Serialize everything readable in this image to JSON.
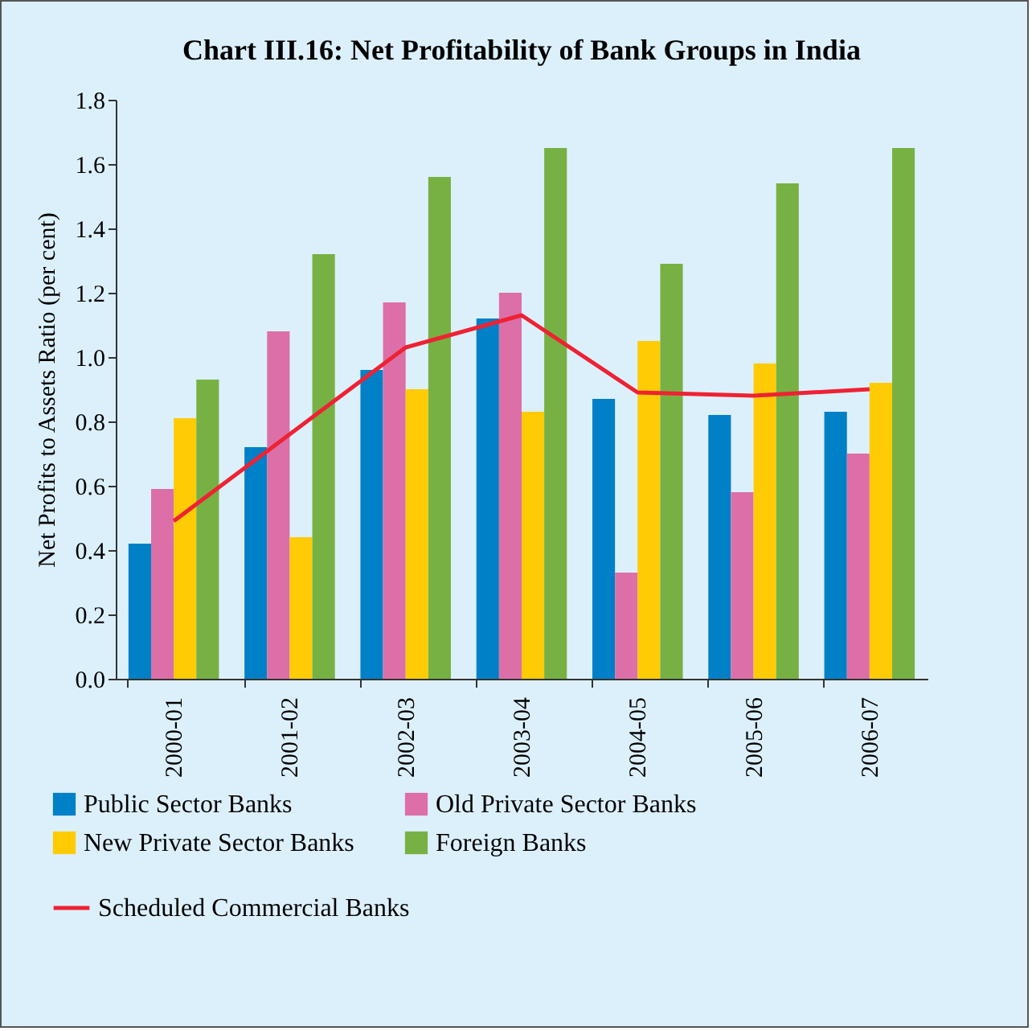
{
  "chart_data": {
    "type": "bar",
    "title": "Chart III.16: Net Profitability of Bank Groups in India",
    "ylabel": "Net Profits to Assets Ratio (per cent)",
    "categories": [
      "2000-01",
      "2001-02",
      "2002-03",
      "2003-04",
      "2004-05",
      "2005-06",
      "2006-07"
    ],
    "series": [
      {
        "name": "Public Sector Banks",
        "color": "#0080c6",
        "values": [
          0.42,
          0.72,
          0.96,
          1.12,
          0.87,
          0.82,
          0.83
        ]
      },
      {
        "name": "Old Private Sector Banks",
        "color": "#dd6fa8",
        "values": [
          0.59,
          1.08,
          1.17,
          1.2,
          0.33,
          0.58,
          0.7
        ]
      },
      {
        "name": "New Private Sector Banks",
        "color": "#ffcb05",
        "values": [
          0.81,
          0.44,
          0.9,
          0.83,
          1.05,
          0.98,
          0.92
        ]
      },
      {
        "name": "Foreign Banks",
        "color": "#77b143",
        "values": [
          0.93,
          1.32,
          1.56,
          1.65,
          1.29,
          1.54,
          1.65
        ]
      },
      {
        "name": "Scheduled Commercial Banks",
        "type": "line",
        "color": "#ee2233",
        "values": [
          0.49,
          0.76,
          1.03,
          1.13,
          0.89,
          0.88,
          0.9
        ]
      }
    ],
    "ylim": [
      0,
      1.8
    ],
    "yticks": [
      {
        "value": 0,
        "label": "0.0"
      },
      0.2,
      0.4,
      0.6,
      0.8,
      {
        "value": 1,
        "label": "1.0"
      },
      1.2,
      1.4,
      1.6,
      1.8
    ],
    "grid": false,
    "legend": "bottom"
  }
}
